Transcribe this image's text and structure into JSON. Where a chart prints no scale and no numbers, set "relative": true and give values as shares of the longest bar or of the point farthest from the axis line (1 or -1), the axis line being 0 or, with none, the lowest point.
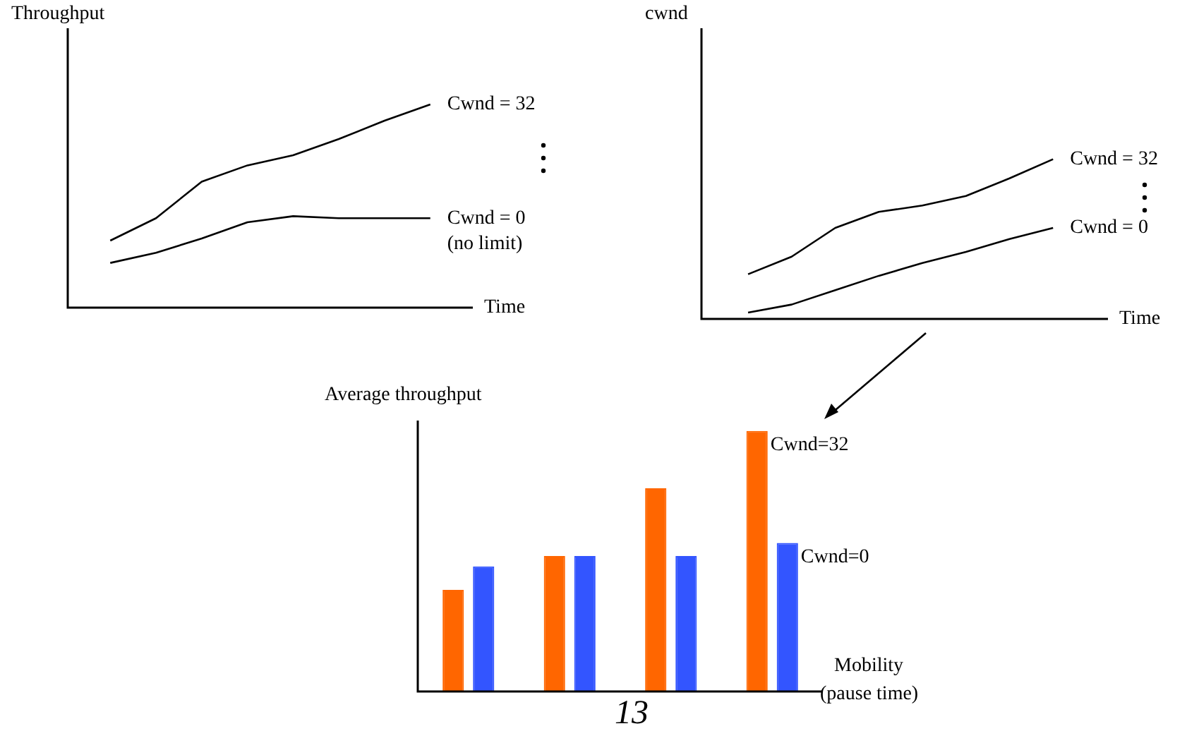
{
  "chart_data": [
    {
      "type": "line",
      "relative": true,
      "ylabel": "Throughput",
      "xlabel": "Time",
      "marker": "none",
      "line_style": "solid",
      "categories": [
        null,
        null,
        null,
        null,
        null,
        null,
        null,
        null
      ],
      "series": [
        {
          "name": "Cwnd = 32",
          "color": "#000000",
          "values": [
            0.33,
            0.44,
            0.62,
            0.7,
            0.75,
            0.83,
            0.92,
            1.0
          ]
        },
        {
          "name": "Cwnd = 0",
          "color": "#000000",
          "values": [
            0.22,
            0.27,
            0.34,
            0.42,
            0.45,
            0.44,
            0.44,
            0.44
          ]
        }
      ],
      "annotations": [
        "(no limit)"
      ]
    },
    {
      "type": "line",
      "relative": true,
      "ylabel": "cwnd",
      "xlabel": "Time",
      "marker": "none",
      "line_style": "solid",
      "categories": [
        null,
        null,
        null,
        null,
        null,
        null,
        null,
        null
      ],
      "series": [
        {
          "name": "Cwnd = 32",
          "color": "#000000",
          "values": [
            0.28,
            0.39,
            0.57,
            0.67,
            0.71,
            0.77,
            0.88,
            1.0
          ]
        },
        {
          "name": "Cwnd = 0",
          "color": "#000000",
          "values": [
            0.04,
            0.09,
            0.18,
            0.27,
            0.35,
            0.42,
            0.5,
            0.57
          ]
        }
      ]
    },
    {
      "type": "bar",
      "relative": true,
      "ylabel": "Average throughput",
      "xlabel": "Mobility",
      "categories": [
        null,
        null,
        null,
        null
      ],
      "series": [
        {
          "name": "Cwnd=32",
          "color": "#ff6600",
          "values": [
            0.39,
            0.52,
            0.78,
            1.0
          ]
        },
        {
          "name": "Cwnd=0",
          "color": "#3355ff",
          "values": [
            0.48,
            0.52,
            0.52,
            0.57
          ]
        }
      ],
      "annotations": [
        "(pause time)",
        "13"
      ]
    }
  ]
}
